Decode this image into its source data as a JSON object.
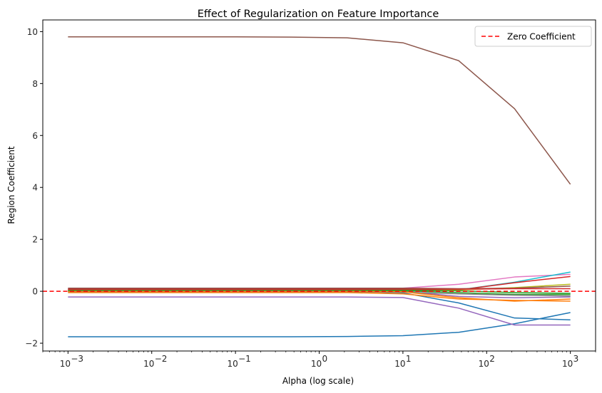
{
  "chart_data": {
    "type": "line",
    "title": "Effect of Regularization on Feature Importance",
    "xlabel": "Alpha (log scale)",
    "ylabel": "Region Coefficient",
    "xscale": "log",
    "xlim": [
      0.0005,
      2000
    ],
    "ylim": [
      -2.3,
      10.45
    ],
    "x": [
      0.001,
      0.004642,
      0.02154,
      0.1,
      0.4642,
      2.154,
      10,
      46.42,
      215.4,
      1000
    ],
    "x_ticks": [
      {
        "value": 0.001,
        "base": "10",
        "exp": "−3"
      },
      {
        "value": 0.01,
        "base": "10",
        "exp": "−2"
      },
      {
        "value": 0.1,
        "base": "10",
        "exp": "−1"
      },
      {
        "value": 1,
        "base": "10",
        "exp": "0"
      },
      {
        "value": 10,
        "base": "10",
        "exp": "1"
      },
      {
        "value": 100,
        "base": "10",
        "exp": "2"
      },
      {
        "value": 1000,
        "base": "10",
        "exp": "3"
      }
    ],
    "y_ticks": [
      {
        "value": -2,
        "label": "−2"
      },
      {
        "value": 0,
        "label": "0"
      },
      {
        "value": 2,
        "label": "2"
      },
      {
        "value": 4,
        "label": "4"
      },
      {
        "value": 6,
        "label": "6"
      },
      {
        "value": 8,
        "label": "8"
      },
      {
        "value": 10,
        "label": "10"
      }
    ],
    "series": [
      {
        "color": "#8c564b",
        "values": [
          9.8,
          9.8,
          9.8,
          9.8,
          9.79,
          9.76,
          9.57,
          8.88,
          7.03,
          4.12
        ]
      },
      {
        "color": "#1f77b4",
        "values": [
          -1.75,
          -1.75,
          -1.75,
          -1.75,
          -1.75,
          -1.74,
          -1.71,
          -1.58,
          -1.25,
          -0.82
        ]
      },
      {
        "color": "#1f77b4",
        "values": [
          0.0,
          0.0,
          0.0,
          0.0,
          0.0,
          -0.01,
          -0.06,
          -0.45,
          -1.03,
          -1.1
        ]
      },
      {
        "color": "#9467bd",
        "values": [
          -0.22,
          -0.22,
          -0.22,
          -0.22,
          -0.22,
          -0.22,
          -0.24,
          -0.65,
          -1.3,
          -1.3
        ]
      },
      {
        "color": "#9467bd",
        "values": [
          0.05,
          0.05,
          0.05,
          0.05,
          0.05,
          0.05,
          0.0,
          -0.2,
          -0.25,
          -0.22
        ]
      },
      {
        "color": "#e377c2",
        "values": [
          0.1,
          0.1,
          0.1,
          0.1,
          0.1,
          0.1,
          0.12,
          0.27,
          0.55,
          0.65
        ]
      },
      {
        "color": "#17becf",
        "values": [
          0.0,
          0.0,
          0.0,
          0.0,
          0.0,
          0.0,
          0.0,
          0.05,
          0.35,
          0.74
        ]
      },
      {
        "color": "#d62728",
        "values": [
          0.05,
          0.05,
          0.05,
          0.05,
          0.05,
          0.05,
          0.05,
          0.05,
          0.33,
          0.57
        ]
      },
      {
        "color": "#bcbd22",
        "values": [
          0.0,
          0.0,
          0.0,
          0.0,
          0.0,
          0.0,
          0.0,
          0.05,
          0.14,
          0.27
        ]
      },
      {
        "color": "#8c564b",
        "values": [
          0.12,
          0.12,
          0.12,
          0.12,
          0.12,
          0.12,
          0.12,
          0.1,
          0.12,
          0.2
        ]
      },
      {
        "color": "#2ca02c",
        "values": [
          0.02,
          0.02,
          0.02,
          0.02,
          0.02,
          0.02,
          0.02,
          -0.05,
          -0.12,
          -0.12
        ]
      },
      {
        "color": "#7f7f7f",
        "values": [
          -0.03,
          -0.03,
          -0.03,
          -0.03,
          -0.03,
          -0.03,
          -0.03,
          -0.1,
          -0.15,
          -0.18
        ]
      },
      {
        "color": "#ff7f0e",
        "values": [
          0.0,
          0.0,
          0.0,
          0.0,
          0.0,
          0.0,
          -0.02,
          -0.25,
          -0.38,
          -0.3
        ]
      },
      {
        "color": "#ff7f0e",
        "values": [
          -0.05,
          -0.05,
          -0.05,
          -0.05,
          -0.05,
          -0.05,
          -0.1,
          -0.3,
          -0.35,
          -0.38
        ]
      },
      {
        "color": "#2ca02c",
        "values": [
          0.03,
          0.03,
          0.03,
          0.03,
          0.03,
          0.03,
          0.04,
          0.02,
          -0.05,
          -0.08
        ]
      },
      {
        "color": "#d62728",
        "values": [
          0.08,
          0.08,
          0.08,
          0.08,
          0.08,
          0.08,
          0.08,
          0.08,
          0.1,
          0.1
        ]
      }
    ],
    "reference_line": {
      "y": 0,
      "color": "#ff0000",
      "style": "dashed",
      "label": "Zero Coefficient"
    },
    "legend": {
      "position": "top-right",
      "entries": [
        "Zero Coefficient"
      ]
    },
    "grid": false
  }
}
